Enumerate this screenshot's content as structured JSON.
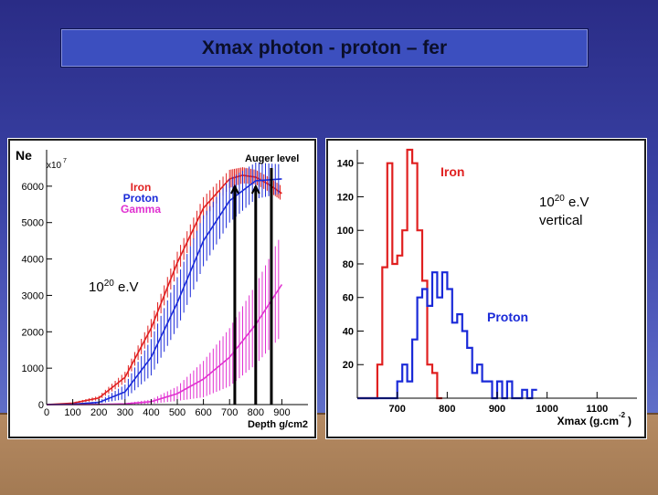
{
  "slide": {
    "title": "Xmax photon - proton – fer"
  },
  "colors": {
    "iron": "#e02020",
    "proton": "#1a2ad8",
    "gamma": "#e030d0",
    "axis": "#000000"
  },
  "chart_data": [
    {
      "type": "line",
      "ylabel": "Ne",
      "y_multiplier": "x10",
      "y_multiplier_exp": "7",
      "xlabel": "Depth g/cm2",
      "xlim": [
        0,
        1000
      ],
      "ylim": [
        0,
        7000
      ],
      "x_ticks": [
        "0",
        "100",
        "200",
        "300",
        "400",
        "500",
        "600",
        "700",
        "800",
        "900"
      ],
      "y_ticks": [
        "0",
        "1000",
        "2000",
        "3000",
        "4000",
        "5000",
        "6000"
      ],
      "marker_label": "Auger level",
      "legend_position": "top-left",
      "annotation": {
        "base": "10",
        "exp": "20",
        "unit": " e.V"
      },
      "series": [
        {
          "name": "Iron",
          "color": "#e02020",
          "x": [
            0,
            100,
            200,
            300,
            400,
            500,
            600,
            700,
            750,
            800,
            850,
            900
          ],
          "y": [
            0,
            40,
            180,
            750,
            2100,
            3900,
            5400,
            6200,
            6300,
            6250,
            6050,
            5800
          ],
          "err": [
            0,
            20,
            60,
            150,
            250,
            300,
            300,
            250,
            220,
            200,
            200,
            200
          ]
        },
        {
          "name": "Proton",
          "color": "#1a2ad8",
          "x": [
            0,
            100,
            200,
            300,
            400,
            500,
            600,
            700,
            800,
            900
          ],
          "y": [
            0,
            10,
            60,
            350,
            1300,
            2800,
            4500,
            5600,
            6150,
            6200
          ],
          "err": [
            0,
            10,
            30,
            200,
            500,
            700,
            700,
            600,
            500,
            400
          ]
        },
        {
          "name": "Gamma",
          "color": "#e030d0",
          "x": [
            0,
            100,
            200,
            300,
            400,
            500,
            600,
            700,
            800,
            900
          ],
          "y": [
            0,
            0,
            5,
            20,
            80,
            300,
            700,
            1300,
            2200,
            3300
          ],
          "err": [
            0,
            0,
            5,
            20,
            60,
            200,
            500,
            800,
            1100,
            1400
          ]
        }
      ],
      "markers_x": [
        720,
        800,
        860
      ]
    },
    {
      "type": "histogram",
      "xlabel": "Xmax (g.cm",
      "xlabel_exp": "-2",
      "xlabel_close": ")",
      "xlim": [
        620,
        1180
      ],
      "ylim": [
        0,
        148
      ],
      "x_ticks": [
        "700",
        "800",
        "900",
        "1000",
        "1100"
      ],
      "y_ticks": [
        "20",
        "40",
        "60",
        "80",
        "100",
        "120",
        "140"
      ],
      "annotation": {
        "base": "10",
        "exp": "20",
        "unit": " e.V",
        "line2": "vertical"
      },
      "bin_width": 10,
      "bin_start": 600,
      "series": [
        {
          "name": "Iron",
          "color": "#e02020",
          "counts": [
            0,
            0,
            0,
            0,
            0,
            0,
            20,
            78,
            140,
            80,
            85,
            100,
            148,
            140,
            100,
            70,
            20,
            15,
            0
          ]
        },
        {
          "name": "Proton",
          "color": "#1a2ad8",
          "counts": [
            0,
            0,
            0,
            0,
            0,
            0,
            0,
            0,
            0,
            0,
            10,
            20,
            10,
            35,
            60,
            65,
            55,
            75,
            60,
            75,
            65,
            45,
            50,
            40,
            30,
            15,
            20,
            10,
            10,
            0,
            10,
            0,
            10,
            0,
            0,
            5,
            0,
            5
          ]
        }
      ]
    }
  ]
}
